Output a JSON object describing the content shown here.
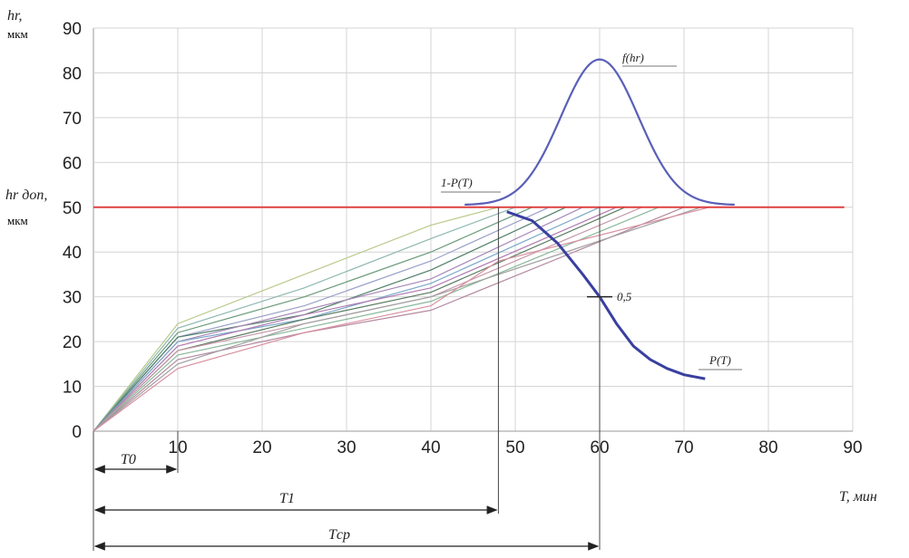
{
  "chart_data": {
    "type": "line",
    "title": "",
    "ylabel": "hr, мкм",
    "ylabel_limit": "hr доп, мкм",
    "xlabel": "T, мин",
    "xlim": [
      0,
      90
    ],
    "ylim": [
      0,
      90
    ],
    "xticks": [
      0,
      10,
      20,
      30,
      40,
      50,
      60,
      70,
      80,
      90
    ],
    "yticks": [
      0,
      10,
      20,
      30,
      40,
      50,
      60,
      70,
      80,
      90
    ],
    "xtick_labels": [
      "10",
      "20",
      "30",
      "40",
      "50",
      "60",
      "70",
      "80",
      "90"
    ],
    "ytick_labels": [
      "0",
      "10",
      "20",
      "30",
      "40",
      "50",
      "60",
      "70",
      "80",
      "90"
    ],
    "grid": true,
    "limit_line": {
      "y": 50,
      "color": "#e04040"
    },
    "wear_series": [
      {
        "color": "#b9c98a",
        "points": [
          [
            0,
            0
          ],
          [
            10,
            24
          ],
          [
            25,
            35
          ],
          [
            40,
            46
          ],
          [
            48,
            50
          ]
        ]
      },
      {
        "color": "#8fb8b0",
        "points": [
          [
            0,
            0
          ],
          [
            10,
            23
          ],
          [
            25,
            32
          ],
          [
            40,
            43
          ],
          [
            50,
            50
          ]
        ]
      },
      {
        "color": "#6a9a7a",
        "points": [
          [
            0,
            0
          ],
          [
            10,
            22
          ],
          [
            25,
            30
          ],
          [
            40,
            40
          ],
          [
            52,
            50
          ]
        ]
      },
      {
        "color": "#9aa0c8",
        "points": [
          [
            0,
            0
          ],
          [
            10,
            21
          ],
          [
            25,
            28
          ],
          [
            40,
            38
          ],
          [
            54,
            50
          ]
        ]
      },
      {
        "color": "#4f7f68",
        "points": [
          [
            0,
            0
          ],
          [
            10,
            21
          ],
          [
            25,
            26
          ],
          [
            40,
            36
          ],
          [
            56,
            50
          ]
        ]
      },
      {
        "color": "#a88ab8",
        "points": [
          [
            0,
            0
          ],
          [
            10,
            20
          ],
          [
            25,
            27
          ],
          [
            40,
            34
          ],
          [
            58,
            50
          ]
        ]
      },
      {
        "color": "#7aa8c8",
        "points": [
          [
            0,
            0
          ],
          [
            10,
            20
          ],
          [
            25,
            25
          ],
          [
            40,
            33
          ],
          [
            60,
            50
          ]
        ]
      },
      {
        "color": "#b07ab0",
        "points": [
          [
            0,
            0
          ],
          [
            10,
            19
          ],
          [
            25,
            26
          ],
          [
            40,
            32
          ],
          [
            62,
            50
          ]
        ]
      },
      {
        "color": "#5a7a60",
        "points": [
          [
            0,
            0
          ],
          [
            10,
            18
          ],
          [
            25,
            25
          ],
          [
            40,
            31
          ],
          [
            63,
            50
          ]
        ]
      },
      {
        "color": "#c69aa8",
        "points": [
          [
            0,
            0
          ],
          [
            10,
            18
          ],
          [
            25,
            24
          ],
          [
            40,
            30
          ],
          [
            65,
            50
          ]
        ]
      },
      {
        "color": "#8ab89a",
        "points": [
          [
            0,
            0
          ],
          [
            10,
            17
          ],
          [
            25,
            23
          ],
          [
            40,
            29
          ],
          [
            67,
            50
          ]
        ]
      },
      {
        "color": "#b48aa0",
        "points": [
          [
            0,
            0
          ],
          [
            10,
            16
          ],
          [
            25,
            22
          ],
          [
            40,
            27
          ],
          [
            70,
            50
          ]
        ]
      },
      {
        "color": "#a0a0a0",
        "points": [
          [
            0,
            0
          ],
          [
            10,
            15
          ],
          [
            25,
            24
          ],
          [
            40,
            30
          ],
          [
            72,
            50
          ]
        ]
      },
      {
        "color": "#d890a0",
        "points": [
          [
            0,
            0
          ],
          [
            10,
            14
          ],
          [
            25,
            22
          ],
          [
            40,
            28
          ],
          [
            48,
            38
          ],
          [
            73,
            50
          ]
        ]
      }
    ],
    "distribution_curve": {
      "label": "f(hr)",
      "color": "#5a5fb8",
      "mean": 60,
      "sigma": 4.6,
      "base": 50.5,
      "peak": 83,
      "range": [
        44,
        76
      ]
    },
    "reliability_curve": {
      "label": "P(T)",
      "color": "#3a3fa0",
      "points": [
        [
          49,
          49
        ],
        [
          52,
          47
        ],
        [
          55,
          42
        ],
        [
          58,
          35
        ],
        [
          60,
          30
        ],
        [
          62,
          24
        ],
        [
          64,
          19
        ],
        [
          66,
          16
        ],
        [
          68,
          14
        ],
        [
          70,
          12.6
        ],
        [
          72.5,
          11.7
        ]
      ]
    },
    "annotations": {
      "one_minus_p": "1-P(T)",
      "half": "0,5",
      "T0": "T0",
      "T1": "T1",
      "Tcp": "Tср",
      "T0_value": 10,
      "T1_value": 48,
      "Tcp_value": 60
    },
    "axis_title_y": "hr,",
    "axis_unit_y": "мкм",
    "axis_title_limit": "hr доп,",
    "axis_unit_limit": "мкм",
    "axis_title_x": "T, мин"
  }
}
